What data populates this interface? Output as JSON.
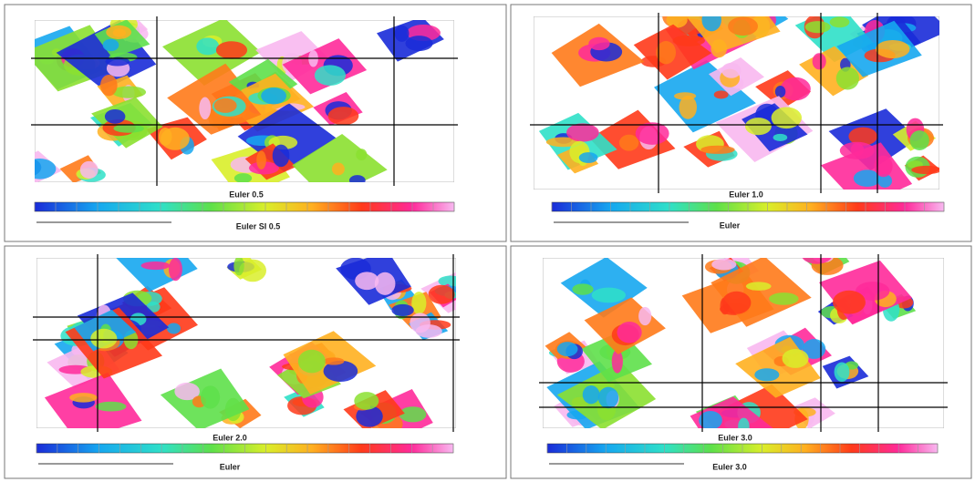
{
  "panels": [
    {
      "title": "Euler 0.5",
      "legend_label": "Euler SI 0.5"
    },
    {
      "title": "Euler 1.0",
      "legend_label": "Euler"
    },
    {
      "title": "Euler 2.0",
      "legend_label": "Euler"
    },
    {
      "title": "Euler 3.0",
      "legend_label": "Euler 3.0"
    }
  ]
}
